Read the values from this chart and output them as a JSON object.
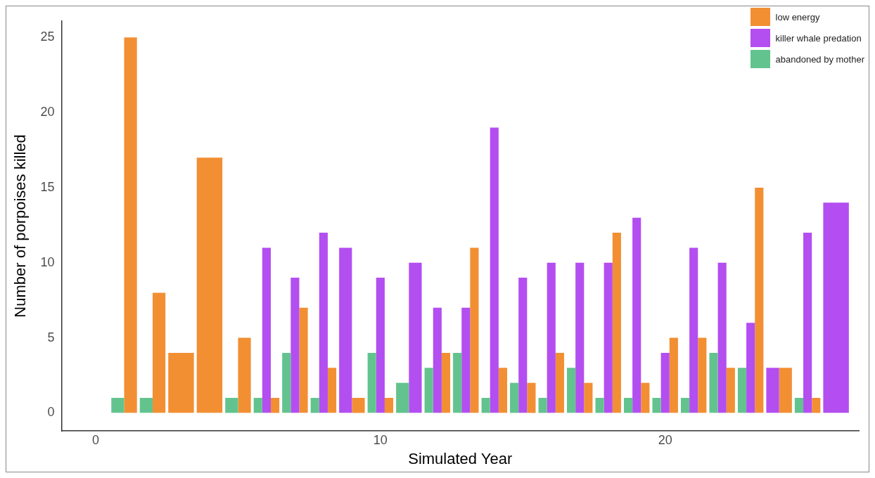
{
  "chart_data": {
    "type": "bar",
    "xlabel": "Simulated Year",
    "ylabel": "Number of porpoises killed",
    "x": [
      1,
      2,
      3,
      4,
      5,
      6,
      7,
      8,
      9,
      10,
      11,
      12,
      13,
      14,
      15,
      16,
      17,
      18,
      19,
      20,
      21,
      22,
      23,
      24,
      25,
      26
    ],
    "series": [
      {
        "name": "low energy",
        "color": "#f28f33",
        "values": [
          25,
          8,
          4,
          17,
          5,
          1,
          7,
          3,
          1,
          1,
          null,
          4,
          11,
          3,
          2,
          4,
          2,
          12,
          2,
          5,
          5,
          3,
          15,
          3,
          1,
          null
        ]
      },
      {
        "name": "killer whale predation",
        "color": "#b34ef0",
        "values": [
          null,
          null,
          null,
          null,
          null,
          11,
          9,
          12,
          11,
          9,
          10,
          7,
          7,
          19,
          9,
          10,
          10,
          10,
          13,
          4,
          11,
          10,
          6,
          3,
          12,
          14
        ]
      },
      {
        "name": "abandoned by mother",
        "color": "#63c38e",
        "values": [
          1,
          1,
          null,
          null,
          1,
          1,
          4,
          1,
          null,
          4,
          2,
          3,
          4,
          1,
          2,
          1,
          3,
          1,
          1,
          1,
          1,
          4,
          3,
          null,
          1,
          null
        ]
      }
    ],
    "xlim": [
      -1.2,
      26.8
    ],
    "xticks": [
      0,
      10,
      20
    ],
    "ylim": [
      -1.2,
      26.1
    ],
    "yticks": [
      0,
      5,
      10,
      15,
      20,
      25
    ],
    "grid": false,
    "legend": "top right"
  }
}
